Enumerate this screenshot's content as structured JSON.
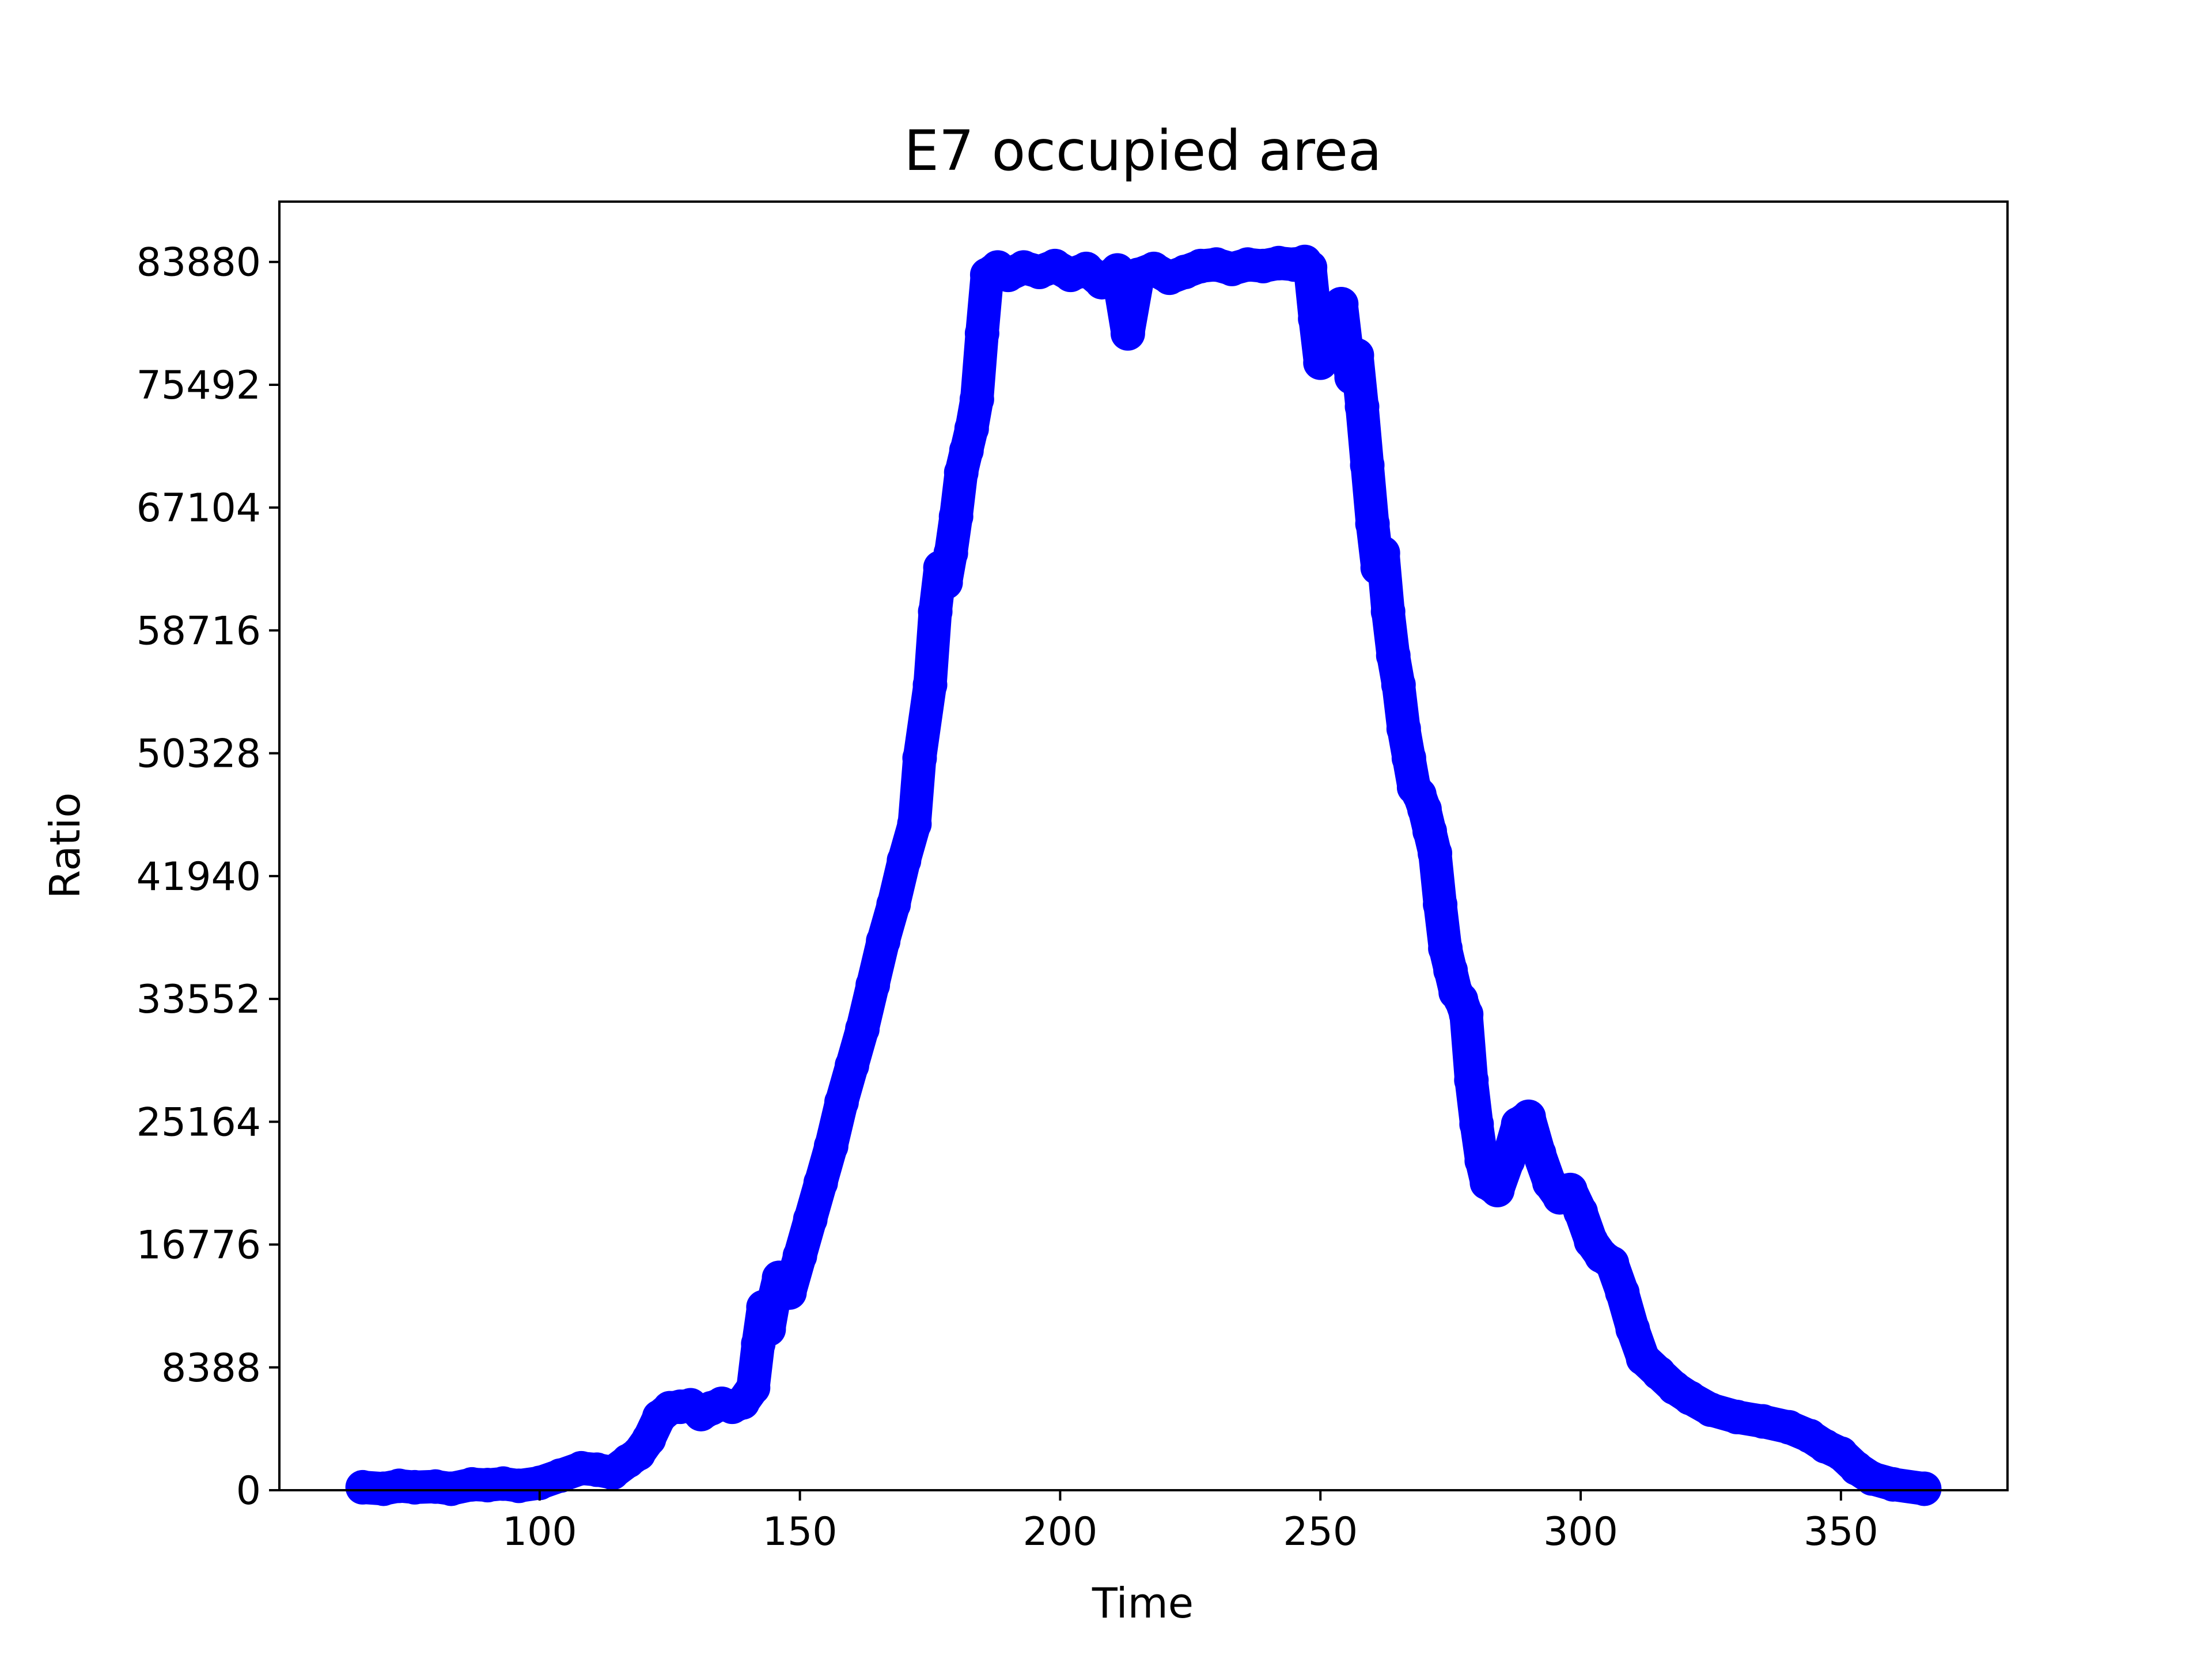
{
  "chart_data": {
    "type": "scatter",
    "title": "E7 occupied area",
    "xlabel": "Time",
    "ylabel": "Ratio",
    "xlim": [
      50,
      382
    ],
    "ylim": [
      0,
      88000
    ],
    "xticks": [
      100,
      150,
      200,
      250,
      300,
      350
    ],
    "xtick_labels": [
      "100",
      "150",
      "200",
      "250",
      "300",
      "350"
    ],
    "yticks": [
      0,
      8388,
      16776,
      25164,
      33552,
      41940,
      50328,
      58716,
      67104,
      75492,
      83880
    ],
    "ytick_labels": [
      "0",
      "8388",
      "16776",
      "25164",
      "33552",
      "41940",
      "50328",
      "58716",
      "67104",
      "75492",
      "83880"
    ],
    "grid": false,
    "legend": "none",
    "color": "#0000ff",
    "series": [
      {
        "x": [
          66,
          70,
          73,
          76,
          80,
          83,
          87,
          90,
          93,
          96,
          100,
          104,
          108,
          111,
          114,
          117,
          119,
          121,
          123,
          125,
          127,
          129,
          131,
          133,
          135,
          137,
          139,
          141,
          142,
          143,
          144,
          145,
          146,
          148,
          150,
          152,
          154,
          156,
          158,
          160,
          162,
          164,
          166,
          168,
          170,
          172,
          173,
          175,
          176,
          177,
          178,
          179,
          180,
          181,
          182,
          183,
          184,
          185,
          186,
          188,
          190,
          193,
          196,
          199,
          202,
          205,
          208,
          211,
          213,
          215,
          218,
          221,
          224,
          227,
          230,
          233,
          236,
          239,
          242,
          245,
          247,
          248,
          249,
          250,
          252,
          254,
          255,
          256,
          257,
          258,
          259,
          260,
          261,
          262,
          263,
          264,
          265,
          266,
          267,
          268,
          269,
          270,
          271,
          272,
          273,
          274,
          275,
          276,
          277,
          278,
          279,
          280,
          281,
          282,
          284,
          286,
          288,
          290,
          292,
          294,
          296,
          298,
          300,
          302,
          304,
          306,
          308,
          310,
          312,
          315,
          318,
          321,
          325,
          330,
          335,
          340,
          344,
          347,
          350,
          353,
          356,
          360,
          366
        ],
        "y": [
          200,
          100,
          300,
          200,
          250,
          100,
          400,
          350,
          450,
          300,
          500,
          1000,
          1500,
          1400,
          1200,
          2000,
          2500,
          3500,
          5000,
          5600,
          5700,
          5800,
          5200,
          5600,
          5900,
          5700,
          6000,
          7000,
          10000,
          12500,
          11000,
          13000,
          14500,
          13500,
          16000,
          18500,
          21000,
          23500,
          26500,
          29000,
          31500,
          34500,
          37500,
          40000,
          43000,
          45500,
          50000,
          55000,
          60000,
          63000,
          62000,
          64000,
          66500,
          69500,
          71000,
          72500,
          74500,
          79000,
          83000,
          83500,
          83000,
          83500,
          83200,
          83600,
          83000,
          83400,
          82500,
          83300,
          79000,
          83000,
          83400,
          82800,
          83200,
          83600,
          83700,
          83400,
          83700,
          83600,
          83800,
          83700,
          83880,
          83500,
          80000,
          77000,
          79500,
          81000,
          78000,
          76000,
          77500,
          74000,
          70000,
          66000,
          63000,
          64000,
          60000,
          57000,
          55000,
          52000,
          50000,
          48000,
          47500,
          46500,
          45000,
          43500,
          40000,
          37000,
          35500,
          34000,
          33500,
          32500,
          28000,
          25000,
          22500,
          21000,
          20500,
          22500,
          25000,
          25500,
          23000,
          21000,
          20000,
          20500,
          19000,
          17000,
          16000,
          15500,
          13500,
          11000,
          9000,
          8000,
          7000,
          6300,
          5500,
          5000,
          4700,
          4300,
          3700,
          3000,
          2500,
          1500,
          800,
          400,
          100
        ]
      }
    ]
  }
}
